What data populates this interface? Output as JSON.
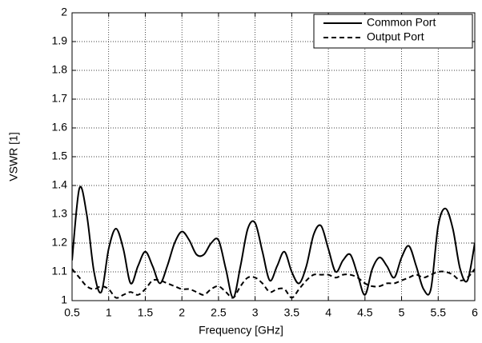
{
  "chart_data": {
    "type": "line",
    "xlabel": "Frequency [GHz]",
    "ylabel": "VSWR [1]",
    "x": [
      0.5,
      0.6,
      0.7,
      0.8,
      0.9,
      1.0,
      1.1,
      1.2,
      1.3,
      1.4,
      1.5,
      1.6,
      1.7,
      1.8,
      1.9,
      2.0,
      2.1,
      2.2,
      2.3,
      2.4,
      2.5,
      2.6,
      2.7,
      2.8,
      2.9,
      3.0,
      3.1,
      3.2,
      3.3,
      3.4,
      3.5,
      3.6,
      3.7,
      3.8,
      3.9,
      4.0,
      4.1,
      4.2,
      4.3,
      4.4,
      4.5,
      4.6,
      4.7,
      4.8,
      4.9,
      5.0,
      5.1,
      5.2,
      5.3,
      5.4,
      5.5,
      5.6,
      5.7,
      5.8,
      5.9,
      6.0
    ],
    "series": [
      {
        "name": "Common Port",
        "color": "#000000",
        "line_style": "solid",
        "values": [
          1.14,
          1.39,
          1.3,
          1.1,
          1.03,
          1.18,
          1.25,
          1.18,
          1.06,
          1.12,
          1.17,
          1.12,
          1.06,
          1.12,
          1.2,
          1.24,
          1.21,
          1.16,
          1.16,
          1.2,
          1.21,
          1.11,
          1.01,
          1.12,
          1.25,
          1.27,
          1.17,
          1.07,
          1.12,
          1.17,
          1.1,
          1.06,
          1.12,
          1.23,
          1.26,
          1.18,
          1.1,
          1.14,
          1.16,
          1.09,
          1.02,
          1.11,
          1.15,
          1.12,
          1.08,
          1.15,
          1.19,
          1.12,
          1.04,
          1.04,
          1.26,
          1.32,
          1.25,
          1.11,
          1.07,
          1.2
        ]
      },
      {
        "name": "Output Port",
        "color": "#000000",
        "line_style": "dashed",
        "values": [
          1.11,
          1.08,
          1.05,
          1.04,
          1.05,
          1.04,
          1.01,
          1.02,
          1.03,
          1.02,
          1.04,
          1.07,
          1.07,
          1.06,
          1.05,
          1.04,
          1.04,
          1.03,
          1.02,
          1.04,
          1.05,
          1.03,
          1.01,
          1.05,
          1.08,
          1.08,
          1.06,
          1.03,
          1.04,
          1.04,
          1.01,
          1.04,
          1.07,
          1.09,
          1.09,
          1.09,
          1.08,
          1.09,
          1.09,
          1.08,
          1.06,
          1.05,
          1.05,
          1.06,
          1.06,
          1.07,
          1.08,
          1.09,
          1.08,
          1.09,
          1.1,
          1.1,
          1.09,
          1.07,
          1.08,
          1.11
        ]
      }
    ],
    "xlim": [
      0.5,
      6
    ],
    "xticks": [
      0.5,
      1,
      1.5,
      2,
      2.5,
      3,
      3.5,
      4,
      4.5,
      5,
      5.5,
      6
    ],
    "ylim": [
      1,
      2
    ],
    "yticks": [
      1,
      1.1,
      1.2,
      1.3,
      1.4,
      1.5,
      1.6,
      1.7,
      1.8,
      1.9,
      2
    ],
    "grid": true,
    "legend": "top-right"
  }
}
